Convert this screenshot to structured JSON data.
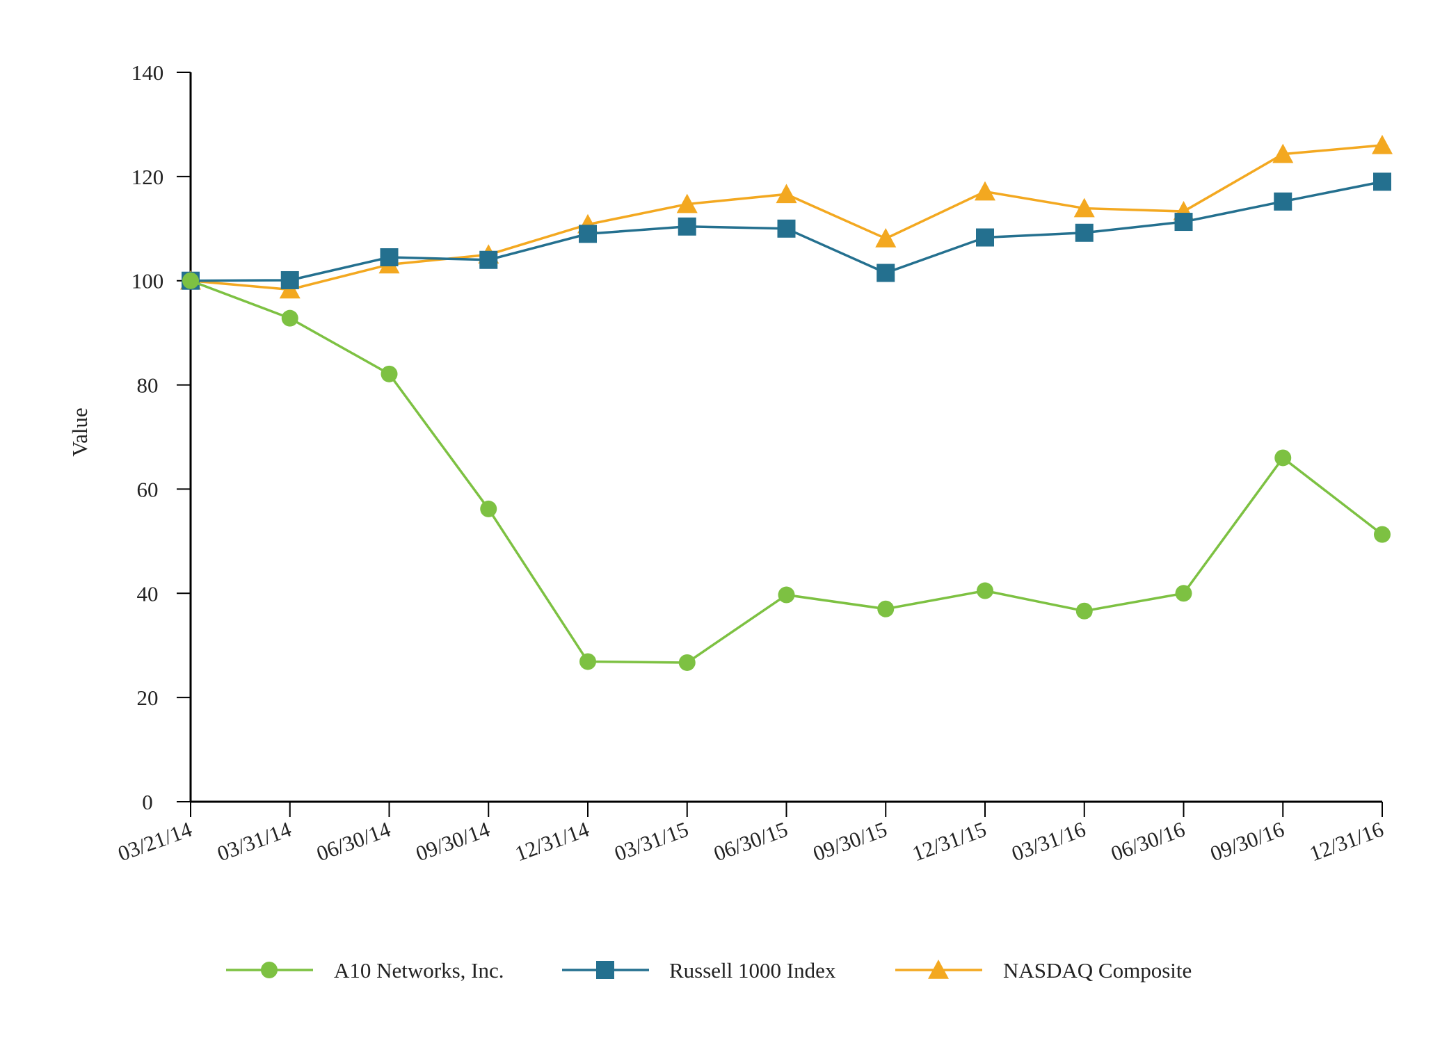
{
  "chart_data": {
    "type": "line",
    "title": "",
    "xlabel": "",
    "ylabel": "Value",
    "ylim": [
      0,
      140
    ],
    "yticks": [
      0,
      20,
      40,
      60,
      80,
      100,
      120,
      140
    ],
    "grid": false,
    "legend_position": "bottom",
    "categories": [
      "03/21/14",
      "03/31/14",
      "06/30/14",
      "09/30/14",
      "12/31/14",
      "03/31/15",
      "06/30/15",
      "09/30/15",
      "12/31/15",
      "03/31/16",
      "06/30/16",
      "09/30/16",
      "12/31/16"
    ],
    "series": [
      {
        "name": "A10 Networks, Inc.",
        "color": "#7dc142",
        "marker": "circle",
        "values": [
          100,
          92.8,
          82.1,
          56.2,
          26.9,
          26.7,
          39.7,
          37.0,
          40.5,
          36.6,
          40.0,
          66.0,
          51.3
        ]
      },
      {
        "name": "Russell 1000 Index",
        "color": "#24708f",
        "marker": "square",
        "values": [
          100,
          100.1,
          104.5,
          104.0,
          109.0,
          110.4,
          110.0,
          101.5,
          108.3,
          109.2,
          111.3,
          115.2,
          119.0
        ]
      },
      {
        "name": "NASDAQ Composite",
        "color": "#f3a820",
        "marker": "triangle",
        "values": [
          100,
          98.3,
          103.1,
          105.0,
          110.8,
          114.7,
          116.6,
          108.1,
          117.1,
          113.9,
          113.3,
          124.3,
          126.0
        ]
      }
    ]
  }
}
